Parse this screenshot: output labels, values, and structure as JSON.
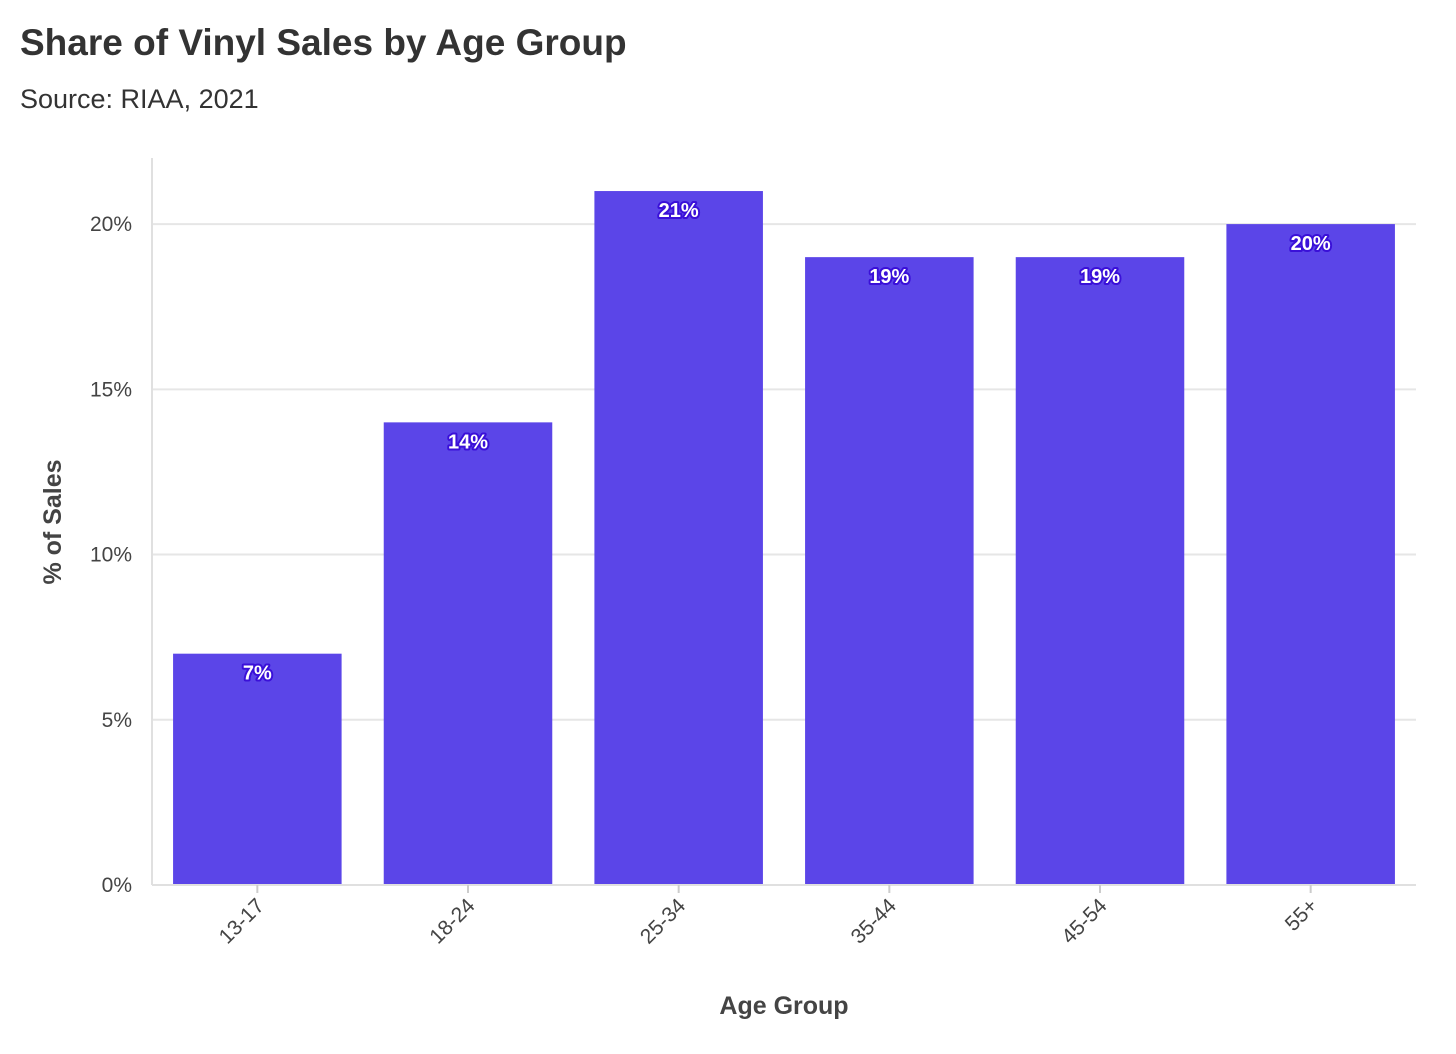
{
  "chart_data": {
    "type": "bar",
    "title": "Share of Vinyl Sales by Age Group",
    "subtitle": "Source: RIAA, 2021",
    "xlabel": "Age Group",
    "ylabel": "% of Sales",
    "categories": [
      "13-17",
      "18-24",
      "25-34",
      "35-44",
      "45-54",
      "55+"
    ],
    "values": [
      7,
      14,
      21,
      19,
      19,
      20
    ],
    "data_labels": [
      "7%",
      "14%",
      "21%",
      "19%",
      "19%",
      "20%"
    ],
    "yticks": [
      0,
      5,
      10,
      15,
      20
    ],
    "ytick_labels": [
      "0%",
      "5%",
      "10%",
      "15%",
      "20%"
    ],
    "ylim": [
      0,
      22
    ],
    "grid": true,
    "legend": "none",
    "bar_color": "#5b45e8",
    "label_outline_color": "#3a10d8"
  }
}
